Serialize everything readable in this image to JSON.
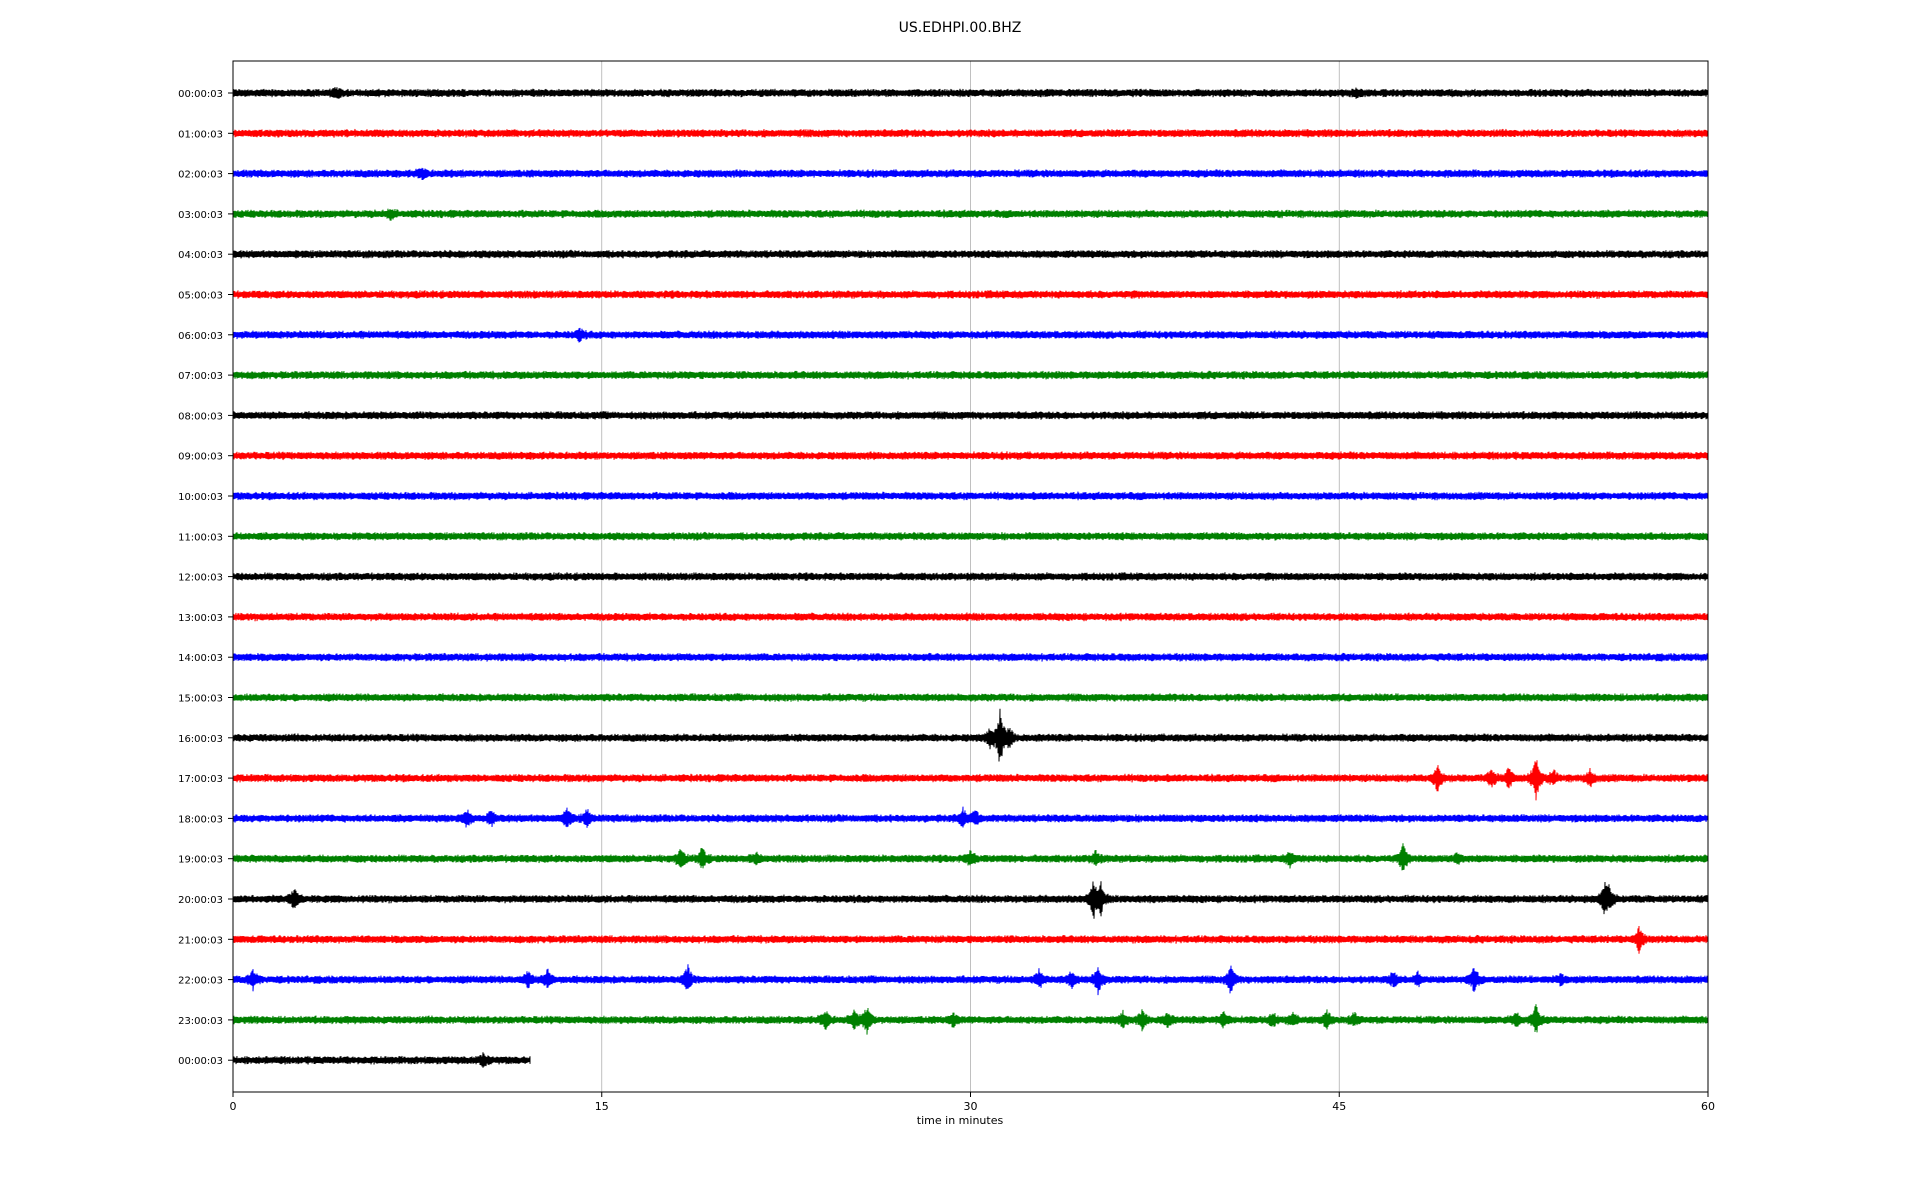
{
  "chart_data": {
    "type": "line",
    "title": "US.EDHPI.00.BHZ",
    "xlabel": "time in minutes",
    "ylabel": "",
    "xlim": [
      0,
      60
    ],
    "xticks": [
      0,
      15,
      30,
      45,
      60
    ],
    "grid": "vertical",
    "colors": [
      "#000000",
      "#ff0000",
      "#0000ff",
      "#008000"
    ],
    "series": [
      {
        "label": "00:00:03",
        "color": "#000000",
        "end": 60,
        "events": [
          [
            4.2,
            0.4
          ],
          [
            45.7,
            0.3
          ]
        ]
      },
      {
        "label": "01:00:03",
        "color": "#ff0000",
        "end": 60,
        "events": []
      },
      {
        "label": "02:00:03",
        "color": "#0000ff",
        "end": 60,
        "events": [
          [
            7.7,
            0.5
          ]
        ]
      },
      {
        "label": "03:00:03",
        "color": "#008000",
        "end": 60,
        "events": [
          [
            6.4,
            0.4
          ]
        ]
      },
      {
        "label": "04:00:03",
        "color": "#000000",
        "end": 60,
        "events": []
      },
      {
        "label": "05:00:03",
        "color": "#ff0000",
        "end": 60,
        "events": []
      },
      {
        "label": "06:00:03",
        "color": "#0000ff",
        "end": 60,
        "events": [
          [
            14.1,
            0.5
          ]
        ]
      },
      {
        "label": "07:00:03",
        "color": "#008000",
        "end": 60,
        "events": []
      },
      {
        "label": "08:00:03",
        "color": "#000000",
        "end": 60,
        "events": []
      },
      {
        "label": "09:00:03",
        "color": "#ff0000",
        "end": 60,
        "events": []
      },
      {
        "label": "10:00:03",
        "color": "#0000ff",
        "end": 60,
        "events": []
      },
      {
        "label": "11:00:03",
        "color": "#008000",
        "end": 60,
        "events": []
      },
      {
        "label": "12:00:03",
        "color": "#000000",
        "end": 60,
        "events": []
      },
      {
        "label": "13:00:03",
        "color": "#ff0000",
        "end": 60,
        "events": []
      },
      {
        "label": "14:00:03",
        "color": "#0000ff",
        "end": 60,
        "events": []
      },
      {
        "label": "15:00:03",
        "color": "#008000",
        "end": 60,
        "events": []
      },
      {
        "label": "16:00:03",
        "color": "#000000",
        "end": 60,
        "events": [
          [
            30.8,
            0.8
          ],
          [
            31.2,
            2.6
          ],
          [
            31.6,
            0.8
          ]
        ]
      },
      {
        "label": "17:00:03",
        "color": "#ff0000",
        "end": 60,
        "events": [
          [
            49,
            1.4
          ],
          [
            51.2,
            0.8
          ],
          [
            51.9,
            0.9
          ],
          [
            53,
            2.2
          ],
          [
            53.7,
            0.7
          ],
          [
            55.2,
            0.7
          ]
        ]
      },
      {
        "label": "18:00:03",
        "color": "#0000ff",
        "end": 60,
        "events": [
          [
            9.5,
            0.8
          ],
          [
            10.5,
            0.6
          ],
          [
            13.6,
            0.8
          ],
          [
            14.4,
            0.7
          ],
          [
            29.7,
            0.8
          ],
          [
            30.2,
            0.6
          ]
        ]
      },
      {
        "label": "19:00:03",
        "color": "#008000",
        "end": 60,
        "events": [
          [
            18.2,
            0.9
          ],
          [
            19.1,
            1.0
          ],
          [
            21.3,
            0.5
          ],
          [
            30,
            0.6
          ],
          [
            35.1,
            0.6
          ],
          [
            43,
            0.6
          ],
          [
            47.6,
            1.2
          ],
          [
            49.8,
            0.4
          ]
        ]
      },
      {
        "label": "20:00:03",
        "color": "#000000",
        "end": 60,
        "events": [
          [
            2.5,
            0.9
          ],
          [
            35,
            1.7
          ],
          [
            35.3,
            1.2
          ],
          [
            55.8,
            1.4
          ],
          [
            56,
            0.9
          ]
        ]
      },
      {
        "label": "21:00:03",
        "color": "#ff0000",
        "end": 60,
        "events": [
          [
            57.2,
            1.1
          ]
        ]
      },
      {
        "label": "22:00:03",
        "color": "#0000ff",
        "end": 60,
        "events": [
          [
            0.8,
            0.9
          ],
          [
            12,
            0.7
          ],
          [
            12.8,
            0.8
          ],
          [
            18.5,
            1.2
          ],
          [
            32.8,
            0.8
          ],
          [
            34.1,
            0.7
          ],
          [
            35.2,
            1.3
          ],
          [
            40.6,
            1.3
          ],
          [
            47.2,
            0.6
          ],
          [
            48.2,
            0.5
          ],
          [
            50.5,
            1.1
          ],
          [
            54,
            0.4
          ]
        ]
      },
      {
        "label": "23:00:03",
        "color": "#008000",
        "end": 60,
        "events": [
          [
            24.1,
            0.9
          ],
          [
            25.3,
            0.8
          ],
          [
            25.8,
            1.3
          ],
          [
            29.3,
            0.5
          ],
          [
            36.2,
            0.6
          ],
          [
            37,
            0.8
          ],
          [
            38,
            0.6
          ],
          [
            40.3,
            0.7
          ],
          [
            42.3,
            0.5
          ],
          [
            43.1,
            0.5
          ],
          [
            44.5,
            0.7
          ],
          [
            45.6,
            0.5
          ],
          [
            52.2,
            0.6
          ],
          [
            53,
            1.3
          ]
        ]
      },
      {
        "label": "00:00:03",
        "color": "#000000",
        "end": 12.1,
        "events": [
          [
            10.2,
            0.6
          ]
        ]
      }
    ]
  }
}
